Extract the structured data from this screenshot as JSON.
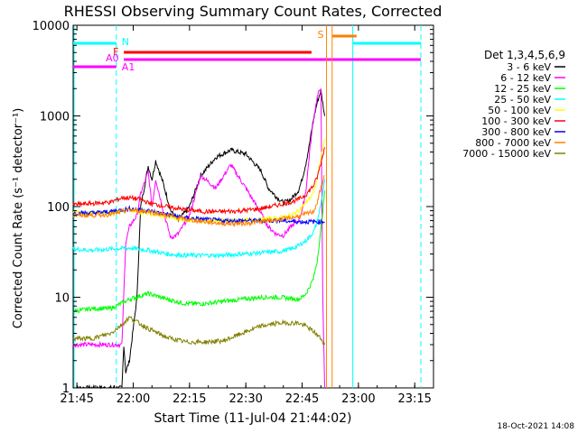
{
  "chart_data": {
    "type": "line",
    "title": "RHESSI Observing Summary Count Rates, Corrected",
    "xlabel": "Start Time (11-Jul-04 21:44:02)",
    "ylabel": "Corrected Count Rate (s⁻¹ detector⁻¹)",
    "yscale": "log",
    "xlim_min": [
      0,
      96
    ],
    "ylim": [
      1,
      10000
    ],
    "x_ticks_min": [
      1,
      16,
      31,
      46,
      61,
      76,
      91
    ],
    "x_tick_labels": [
      "21:45",
      "22:00",
      "22:15",
      "22:30",
      "22:45",
      "23:00",
      "23:15"
    ],
    "y_ticks": [
      1,
      10,
      100,
      1000,
      10000
    ],
    "y_tick_labels": [
      "1",
      "10",
      "100",
      "1000",
      "10000"
    ],
    "legend_title": "Det 1,3,4,5,6,9",
    "legend_position": "right",
    "footer": "18-Oct-2021 14:08",
    "series": [
      {
        "name": "3 - 6 keV",
        "color": "#000000",
        "x": [
          0,
          13,
          13.5,
          14,
          15,
          17,
          18,
          20,
          21,
          22,
          24,
          26,
          28,
          31,
          34,
          38,
          42,
          46,
          50,
          52,
          54,
          56,
          58,
          60,
          61,
          62,
          63,
          64,
          65,
          66,
          67
        ],
        "y": [
          1,
          1,
          3,
          1.5,
          2,
          10,
          100,
          280,
          200,
          320,
          180,
          90,
          70,
          100,
          220,
          350,
          420,
          380,
          250,
          160,
          130,
          110,
          120,
          150,
          200,
          300,
          500,
          900,
          1400,
          1900,
          1000
        ]
      },
      {
        "name": "6 - 12 keV",
        "color": "#ff00ff",
        "x": [
          0,
          6,
          10,
          13,
          14,
          15,
          17,
          18,
          20,
          21,
          22,
          24,
          26,
          28,
          31,
          34,
          38,
          42,
          46,
          50,
          52,
          54,
          56,
          58,
          60,
          61,
          62,
          63,
          64,
          65,
          66,
          66.5,
          67
        ],
        "y": [
          3,
          3,
          3,
          3,
          40,
          60,
          80,
          140,
          240,
          100,
          200,
          90,
          45,
          50,
          80,
          220,
          160,
          290,
          160,
          85,
          60,
          50,
          48,
          60,
          70,
          90,
          150,
          400,
          900,
          1600,
          2100,
          10,
          1
        ]
      },
      {
        "name": "12 - 25 keV",
        "color": "#00ff00",
        "x": [
          0,
          5,
          10,
          15,
          20,
          25,
          30,
          35,
          40,
          45,
          50,
          55,
          60,
          61,
          62,
          63,
          64,
          65,
          66,
          67
        ],
        "y": [
          7,
          7.5,
          7.5,
          9.5,
          11,
          9.5,
          8.5,
          8.5,
          9,
          9.5,
          10,
          10,
          9.5,
          10,
          11,
          13,
          16,
          25,
          55,
          150
        ]
      },
      {
        "name": "25 - 50 keV",
        "color": "#00ffff",
        "x": [
          0,
          5,
          10,
          15,
          20,
          25,
          30,
          35,
          40,
          45,
          50,
          55,
          58,
          60,
          62,
          64,
          65,
          66,
          67
        ],
        "y": [
          34,
          33,
          34,
          35,
          33,
          30,
          29,
          29,
          29,
          30,
          31,
          32,
          34,
          37,
          42,
          52,
          68,
          105,
          200
        ]
      },
      {
        "name": "50 - 100 keV",
        "color": "#ffff00",
        "x": [
          0,
          5,
          10,
          15,
          20,
          25,
          30,
          35,
          40,
          45,
          50,
          55,
          58,
          60,
          62,
          64,
          65,
          66,
          67
        ],
        "y": [
          85,
          85,
          85,
          92,
          85,
          78,
          72,
          70,
          70,
          70,
          72,
          75,
          80,
          90,
          110,
          140,
          200,
          350,
          560
        ]
      },
      {
        "name": "100 - 300 keV",
        "color": "#ff0000",
        "x": [
          0,
          5,
          10,
          13,
          15,
          18,
          20,
          25,
          30,
          35,
          40,
          45,
          50,
          55,
          58,
          60,
          62,
          64,
          65,
          66,
          67
        ],
        "y": [
          105,
          108,
          112,
          125,
          125,
          120,
          110,
          100,
          92,
          88,
          88,
          90,
          95,
          105,
          112,
          120,
          135,
          170,
          210,
          300,
          450
        ]
      },
      {
        "name": "300 - 800 keV",
        "color": "#0000ff",
        "x": [
          0,
          5,
          10,
          15,
          20,
          25,
          30,
          35,
          40,
          45,
          50,
          55,
          60,
          65,
          67
        ],
        "y": [
          85,
          85,
          88,
          95,
          90,
          82,
          75,
          72,
          70,
          70,
          70,
          70,
          68,
          68,
          68
        ]
      },
      {
        "name": "800 - 7000 keV",
        "color": "#ff8000",
        "x": [
          0,
          5,
          10,
          15,
          20,
          25,
          30,
          35,
          40,
          45,
          50,
          55,
          60,
          64,
          65,
          66,
          67
        ],
        "y": [
          80,
          80,
          82,
          92,
          88,
          80,
          72,
          68,
          65,
          65,
          68,
          72,
          78,
          88,
          110,
          160,
          220
        ]
      },
      {
        "name": "7000 - 15000 keV",
        "color": "#808000",
        "x": [
          0,
          5,
          10,
          13,
          15,
          20,
          25,
          30,
          35,
          40,
          45,
          50,
          55,
          60,
          62,
          64,
          66,
          67
        ],
        "y": [
          3.5,
          3.5,
          4,
          5,
          6,
          4.5,
          3.6,
          3.2,
          3.2,
          3.3,
          4,
          4.8,
          5.2,
          5.2,
          4.8,
          4.2,
          3.5,
          3
        ]
      }
    ],
    "annotations": [
      {
        "label": "N",
        "color": "#00ffff"
      },
      {
        "label": "F",
        "color": "#ff0000"
      },
      {
        "label": "A0",
        "color": "#ff00ff"
      },
      {
        "label": "A1",
        "color": "#ff00ff"
      },
      {
        "label": "S",
        "color": "#ff8000"
      }
    ]
  }
}
